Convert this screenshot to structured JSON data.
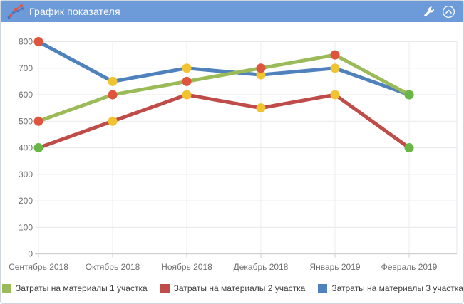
{
  "header": {
    "title": "График показателя"
  },
  "chart_data": {
    "type": "line",
    "categories": [
      "Сентябрь 2018",
      "Октябрь 2018",
      "Ноябрь 2018",
      "Декабрь 2018",
      "Январь 2019",
      "Февраль 2019"
    ],
    "series": [
      {
        "name": "Затраты на материалы 1 участка",
        "color": "#9bbb59",
        "values": [
          500,
          600,
          650,
          700,
          750,
          600
        ],
        "point_colors": [
          "red",
          "red",
          "red",
          "red",
          "red",
          "green"
        ]
      },
      {
        "name": "Затраты на материалы 2 участка",
        "color": "#bf4c49",
        "values": [
          400,
          500,
          600,
          550,
          600,
          400
        ],
        "point_colors": [
          "green",
          "yellow",
          "yellow",
          "yellow",
          "yellow",
          "green"
        ]
      },
      {
        "name": "Затраты на материалы 3 участка",
        "color": "#4f81bd",
        "values": [
          800,
          650,
          700,
          675,
          700,
          600
        ],
        "point_colors": [
          "red",
          "yellow",
          "yellow",
          "yellow",
          "yellow",
          "green"
        ]
      }
    ],
    "ylim": [
      0,
      800
    ],
    "ytick_step": 100,
    "grid": true,
    "legend_position": "bottom",
    "marker_palette": {
      "red": "#e0543d",
      "yellow": "#f2c331",
      "green": "#69b646"
    }
  },
  "colors": {
    "header_bg": "#6d9ad9",
    "header_text": "#ffffff",
    "panel_border": "#cfd6dd",
    "gridline": "#e8e8e8",
    "vgridline": "#ededed",
    "axis_line": "#cccccc",
    "axis_label": "#6f6f6f",
    "legend_text": "#404040",
    "plot_right_border": "#e2e8f0"
  }
}
